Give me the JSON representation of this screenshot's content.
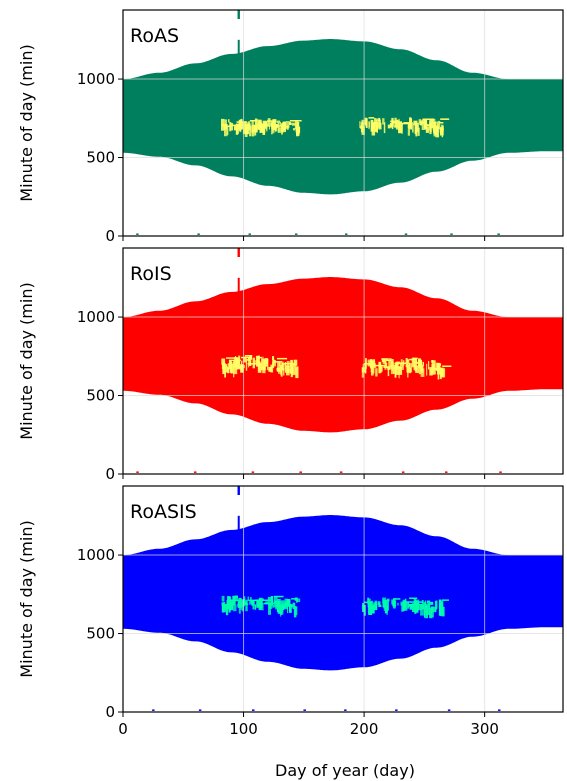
{
  "chart_data": {
    "type": "area",
    "shared_x": {
      "label": "Day of year (day)",
      "range": [
        0,
        365
      ],
      "ticks": [
        0,
        100,
        200,
        300
      ],
      "tick_labels": [
        "0",
        "100",
        "200",
        "300"
      ]
    },
    "y_axis": {
      "label": "Minute of day (min)",
      "range": [
        0,
        1440
      ],
      "ticks": [
        0,
        500,
        1000
      ],
      "tick_labels": [
        "0",
        "500",
        "1000"
      ]
    },
    "grid": true,
    "daylight_band": {
      "description_of_values": "upper and lower bound of data band in minutes of day",
      "days": [
        0,
        30,
        60,
        90,
        120,
        150,
        172,
        200,
        230,
        260,
        290,
        320,
        350,
        365
      ],
      "upper": [
        1000,
        1040,
        1100,
        1160,
        1210,
        1245,
        1255,
        1240,
        1190,
        1120,
        1040,
        1000,
        1000,
        1000
      ],
      "lower": [
        530,
        505,
        450,
        380,
        320,
        275,
        265,
        285,
        340,
        410,
        480,
        530,
        540,
        540
      ]
    },
    "panels": [
      {
        "title": "RoAS",
        "band_color": "#007F5F",
        "cluster_color": "#FFFF66",
        "clusters": [
          {
            "x": [
              81,
              145
            ],
            "y": [
              680,
              775
            ]
          },
          {
            "x": [
              196,
              265
            ],
            "y": [
              680,
              785
            ]
          }
        ],
        "spike": {
          "x": 96,
          "y": [
            1200,
            1440
          ]
        }
      },
      {
        "title": "RoIS",
        "band_color": "#FF0000",
        "cluster_color": "#FFFF66",
        "clusters": [
          {
            "x": [
              81,
              145
            ],
            "y": [
              650,
              790
            ]
          },
          {
            "x": [
              198,
              265
            ],
            "y": [
              650,
              770
            ]
          }
        ],
        "spike": {
          "x": 96,
          "y": [
            1200,
            1440
          ]
        }
      },
      {
        "title": "RoASIS",
        "band_color": "#0000FF",
        "cluster_color": "#00FFAA",
        "clusters": [
          {
            "x": [
              81,
              145
            ],
            "y": [
              660,
              770
            ]
          },
          {
            "x": [
              198,
              265
            ],
            "y": [
              655,
              755
            ]
          }
        ],
        "spike": {
          "x": 96,
          "y": [
            1200,
            1440
          ]
        }
      }
    ]
  }
}
